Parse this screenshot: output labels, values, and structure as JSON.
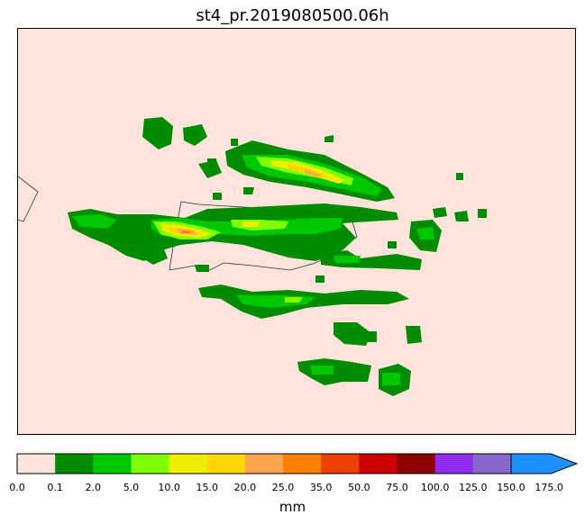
{
  "map": {
    "title": "st4_pr.2019080500.06h",
    "background_color": "#fce4dc",
    "border_color": "#000000"
  },
  "colorbar": {
    "unit": "mm",
    "extend": "max",
    "ticks": [
      "0.0",
      "0.1",
      "2.0",
      "5.0",
      "10.0",
      "15.0",
      "20.0",
      "25.0",
      "35.0",
      "50.0",
      "75.0",
      "100.0",
      "125.0",
      "150.0",
      "175.0"
    ],
    "colors": [
      "#fce4dc",
      "#008b00",
      "#00c800",
      "#7fff00",
      "#eeee00",
      "#ffd700",
      "#ffa54f",
      "#ff7f00",
      "#ee4000",
      "#cd0000",
      "#8b0000",
      "#912cee",
      "#8968cd",
      "#1e90ff"
    ]
  }
}
